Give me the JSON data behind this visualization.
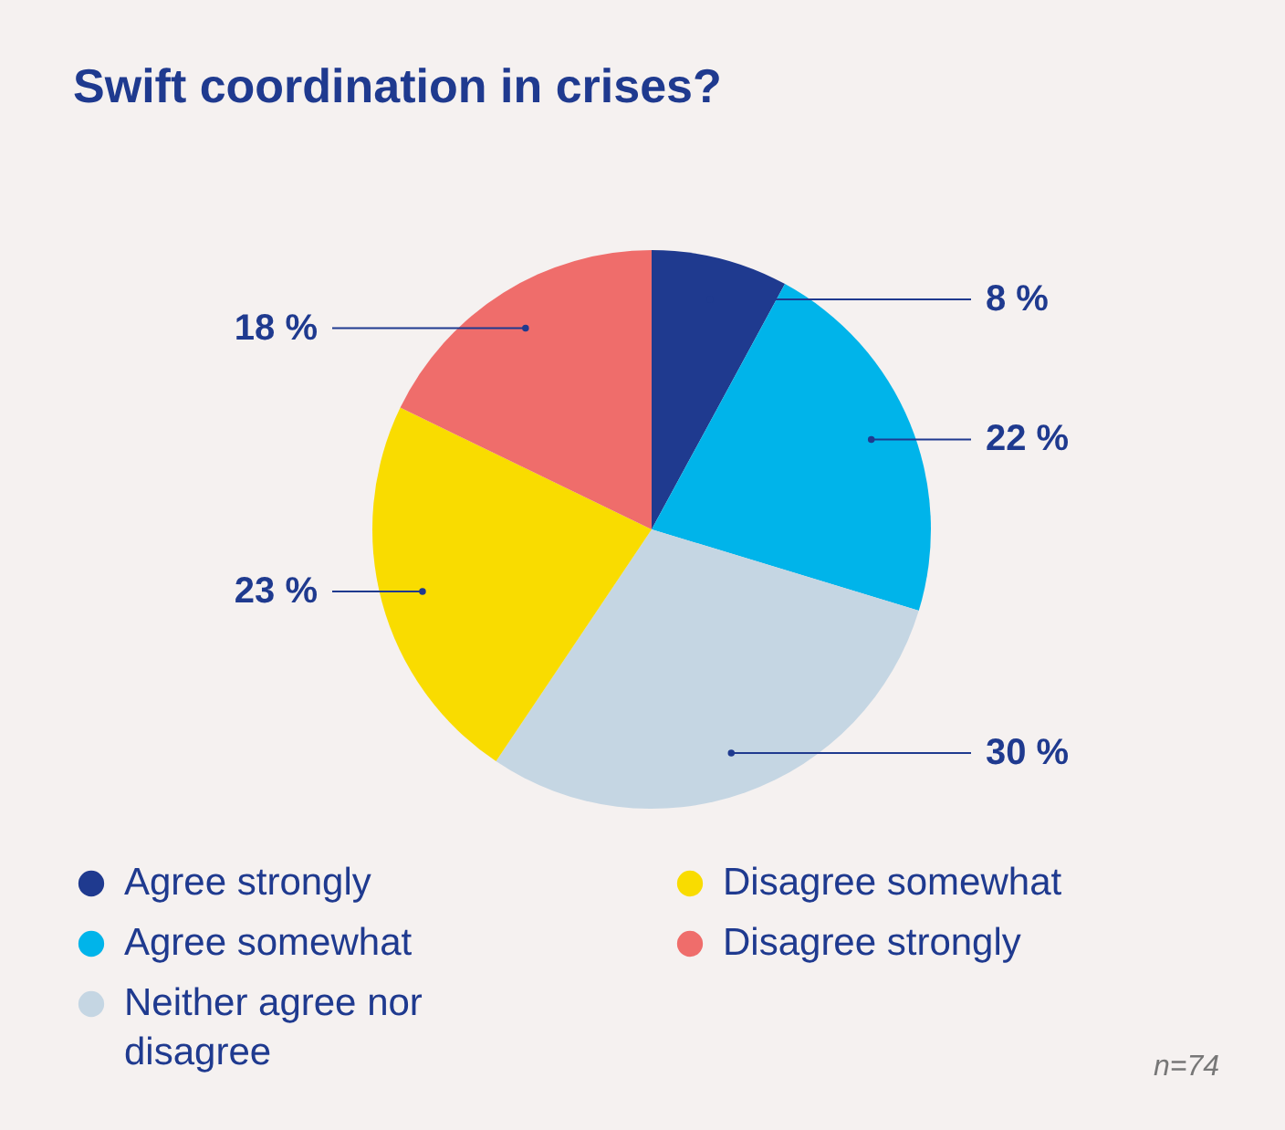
{
  "chart_data": {
    "type": "pie",
    "title": "Swift coordination in crises?",
    "categories": [
      "Agree strongly",
      "Agree somewhat",
      "Neither agree nor disagree",
      "Disagree somewhat",
      "Disagree strongly"
    ],
    "values": [
      8,
      22,
      30,
      23,
      18
    ],
    "colors": [
      "#1f3a8f",
      "#00b4ea",
      "#c5d6e3",
      "#f9dc00",
      "#ef6d6b"
    ],
    "value_labels": [
      "8 %",
      "22 %",
      "30 %",
      "23 %",
      "18 %"
    ],
    "legend": "bottom",
    "annotations": [
      "n=74"
    ]
  }
}
